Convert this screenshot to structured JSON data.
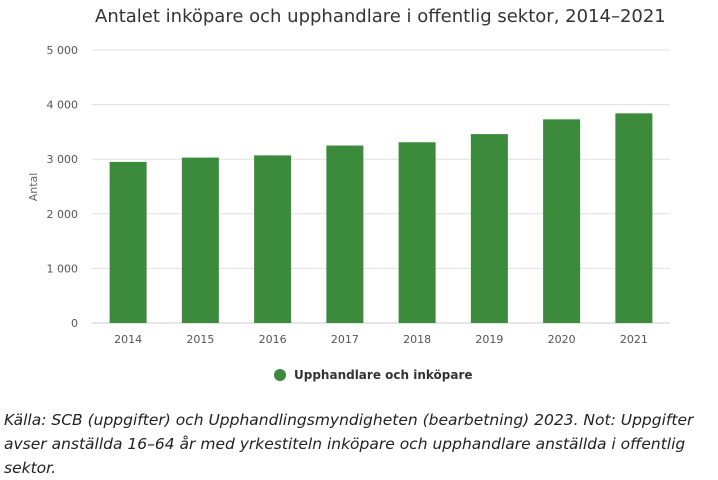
{
  "chart_data": {
    "type": "bar",
    "title": "Antalet inköpare och upphandlare i offentlig sektor, 2014–2021",
    "ylabel": "Antal",
    "xlabel": "",
    "categories": [
      "2014",
      "2015",
      "2016",
      "2017",
      "2018",
      "2019",
      "2020",
      "2021"
    ],
    "series": [
      {
        "name": "Upphandlare och inköpare",
        "values": [
          2950,
          3030,
          3070,
          3250,
          3310,
          3460,
          3730,
          3840
        ]
      }
    ],
    "ylim": [
      0,
      5000
    ],
    "yticks": [
      {
        "value": 0,
        "label": "0"
      },
      {
        "value": 1000,
        "label": "1 000"
      },
      {
        "value": 2000,
        "label": "2 000"
      },
      {
        "value": 3000,
        "label": "3 000"
      },
      {
        "value": 4000,
        "label": "4 000"
      },
      {
        "value": 5000,
        "label": "5 000"
      }
    ],
    "grid": true,
    "legend_position": "bottom-center",
    "colors": {
      "bar": "#3c8a3c",
      "grid": "#e0e0e0",
      "axis": "#cccccc"
    }
  },
  "source_note": "Källa: SCB (uppgifter) och Upphandlingsmyndigheten (bearbetning) 2023. Not: Uppgifter avser anställda 16–64 år med yrkestiteln inköpare och upphandlare anställda i offentlig sektor."
}
